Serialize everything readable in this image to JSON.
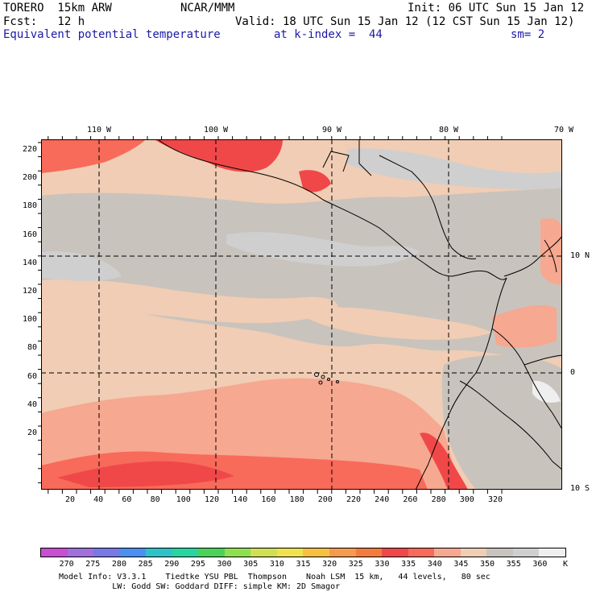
{
  "header": {
    "model": "TORERO  15km ARW",
    "org": "NCAR/MMM",
    "init": "Init: 06 UTC Sun 15 Jan 12",
    "fcst": "Fcst:   12 h",
    "valid": "Valid: 18 UTC Sun 15 Jan 12 (12 CST Sun 15 Jan 12)",
    "field": "Equivalent potential temperature",
    "level": "at k-index =  44",
    "smooth": "sm= 2"
  },
  "axes": {
    "x_ticks": [
      "20",
      "40",
      "60",
      "80",
      "100",
      "120",
      "140",
      "160",
      "180",
      "200",
      "220",
      "240",
      "260",
      "280",
      "300",
      "320"
    ],
    "y_ticks": [
      "220",
      "200",
      "180",
      "160",
      "140",
      "120",
      "100",
      "80",
      "60",
      "40",
      "20"
    ],
    "lon_labels": [
      "110 W",
      "100 W",
      "90 W",
      "80 W",
      "70 W"
    ],
    "lat_labels": [
      "10 N",
      "0",
      "10 S"
    ]
  },
  "colors": {
    "land_line": "#000000",
    "grid_line": "#000000"
  },
  "field_palette": {
    "330": "#f04848",
    "335": "#f86a5a",
    "340": "#f6a890",
    "345": "#f0cdb4",
    "350": "#c9c3bd",
    "355": "#cfcfcf",
    "360": "#efefef"
  },
  "legend": {
    "unit": "K",
    "labels": [
      "270",
      "275",
      "280",
      "285",
      "290",
      "295",
      "300",
      "305",
      "310",
      "315",
      "320",
      "325",
      "330",
      "335",
      "340",
      "345",
      "350",
      "355",
      "360"
    ],
    "colors": [
      "#c84fd2",
      "#a070dc",
      "#7878e6",
      "#4b8ff0",
      "#2fc1c8",
      "#28d4a0",
      "#4ad25a",
      "#8ee050",
      "#cfe054",
      "#efe24e",
      "#f6c040",
      "#f69b4e",
      "#f47b3e",
      "#f04848",
      "#f86a5a",
      "#f6a890",
      "#f0cdb4",
      "#c9c3bd",
      "#cfcfcf",
      "#efefef"
    ]
  },
  "footer": {
    "line1": "Model Info: V3.3.1    Tiedtke YSU PBL  Thompson    Noah LSM  15 km,   44 levels,   80 sec",
    "line2": "           LW: Godd SW: Goddard DIFF: simple KM: 2D Smagor"
  }
}
